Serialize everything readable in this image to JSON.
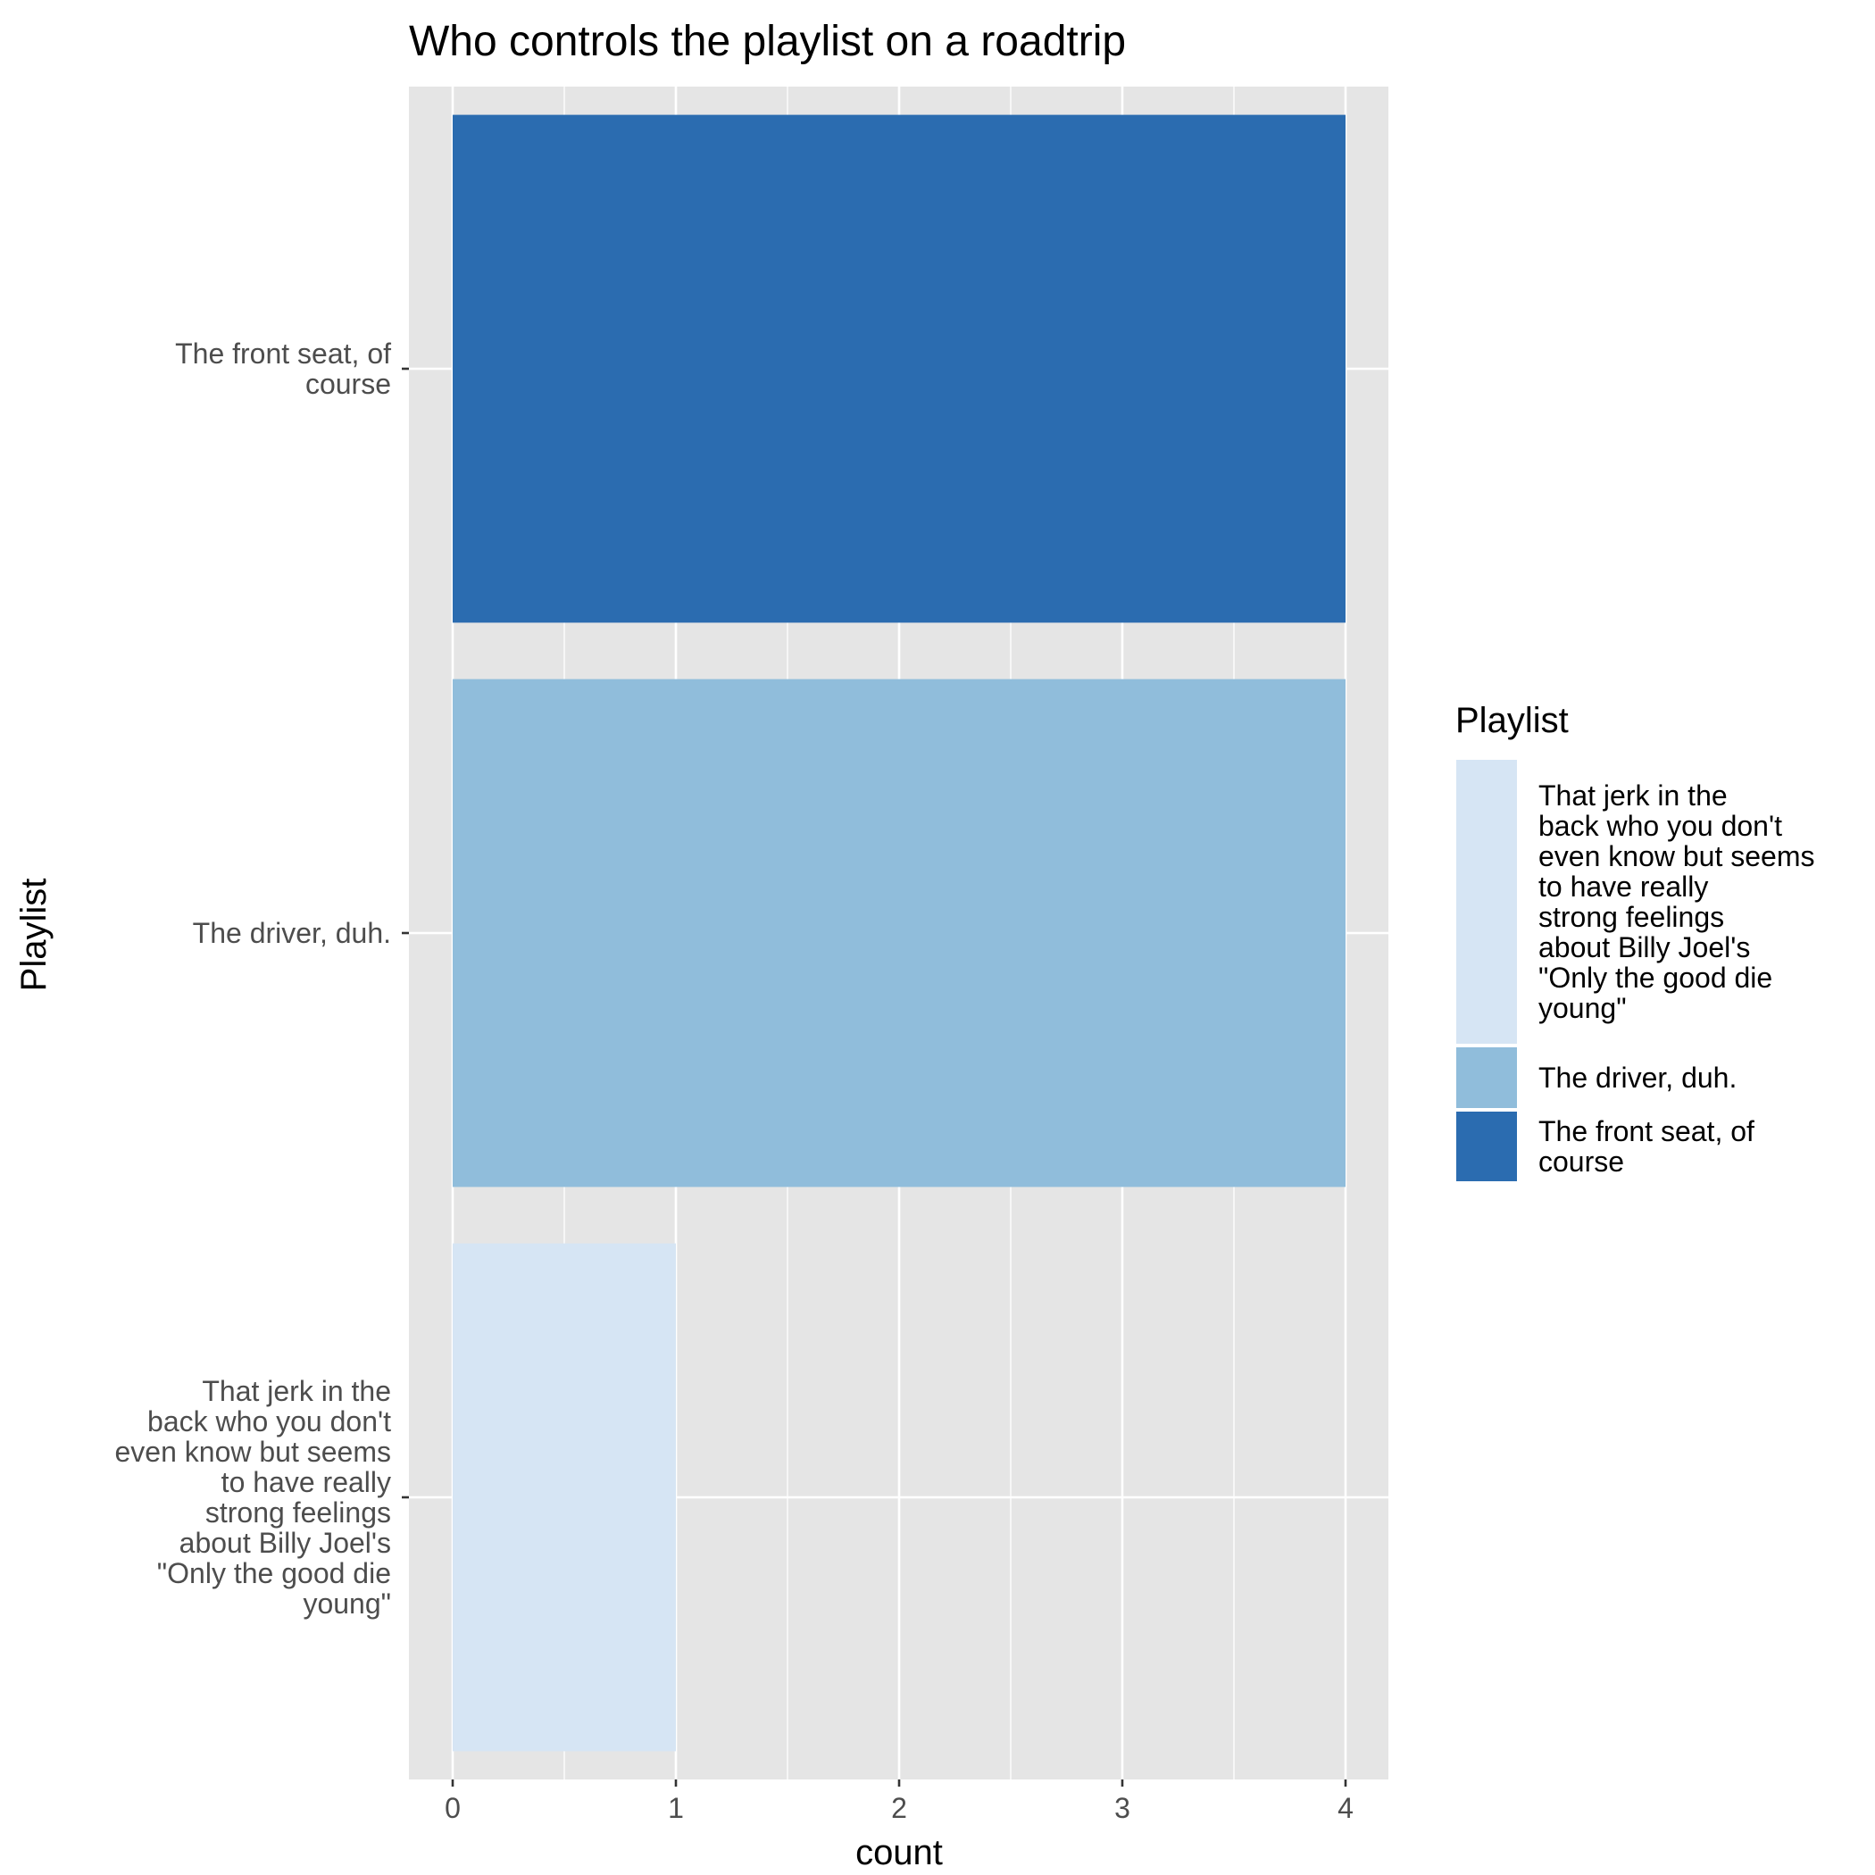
{
  "chart_data": {
    "type": "bar",
    "orientation": "horizontal",
    "title": "Who controls the playlist on a roadtrip",
    "xlabel": "count",
    "ylabel": "Playlist",
    "xlim": [
      0,
      4
    ],
    "x_ticks": [
      0,
      1,
      2,
      3,
      4
    ],
    "grid": true,
    "legend_placement": "right",
    "categories": [
      "The front seat, of course",
      "The driver, duh.",
      "That jerk in the back who you don't even know but seems to have really strong feelings about Billy Joel's \"Only the good die young\""
    ],
    "category_label_lines": [
      [
        "The front seat, of",
        "course"
      ],
      [
        "The driver, duh."
      ],
      [
        "That jerk in the",
        "back who you don't",
        "even know but seems",
        "to have really",
        "strong feelings",
        "about Billy Joel's",
        "\"Only the good die",
        "young\""
      ]
    ],
    "values": [
      4,
      4,
      1
    ],
    "colors": [
      "#2b6cb0",
      "#90bddb",
      "#d6e5f4"
    ],
    "legend": {
      "title": "Playlist",
      "entries": [
        {
          "lines": [
            "That jerk in the",
            "back who you don't",
            "even know but seems",
            "to have really",
            "strong feelings",
            "about Billy Joel's",
            "\"Only the good die",
            "young\""
          ],
          "color": "#d6e5f4"
        },
        {
          "lines": [
            "The driver, duh."
          ],
          "color": "#90bddb"
        },
        {
          "lines": [
            "The front seat, of",
            "course"
          ],
          "color": "#2b6cb0"
        }
      ]
    },
    "panel_background": "#e5e5e5",
    "grid_color": "#ffffff"
  }
}
